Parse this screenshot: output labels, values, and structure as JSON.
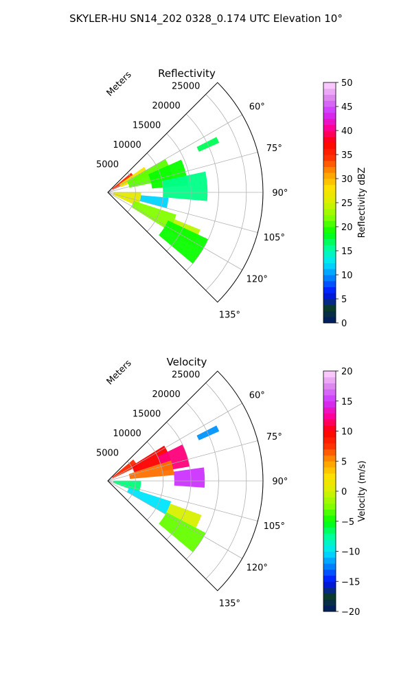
{
  "suptitle": "SKYLER-HU  SN14_202  0328_0.174 UTC Elevation 10°",
  "chart_data": [
    {
      "type": "heatmap",
      "projection": "polar-sector",
      "title": "Reflectivity",
      "radial_label": "Meters",
      "range_ticks": [
        5000,
        10000,
        15000,
        20000,
        25000
      ],
      "range_tick_labels": [
        "5000",
        "10000",
        "15000",
        "20000",
        "25000"
      ],
      "rmax": 28000,
      "azimuth_range_deg": [
        45,
        135
      ],
      "azimuth_ticks_deg": [
        60,
        75,
        90,
        105,
        120,
        135
      ],
      "azimuth_tick_labels": [
        "60°",
        "75°",
        "90°",
        "105°",
        "120°",
        "135°"
      ],
      "grid": true,
      "colorbar": {
        "label": "Reflectivity dBZ",
        "vmin": 0,
        "vmax": 50,
        "ticks": [
          0,
          5,
          10,
          15,
          20,
          25,
          30,
          35,
          40,
          45,
          50
        ],
        "tick_labels": [
          "0",
          "5",
          "10",
          "15",
          "20",
          "25",
          "30",
          "35",
          "40",
          "45",
          "50"
        ],
        "stops": [
          "#001a66",
          "#0b3b2e",
          "#0010ff",
          "#0080ff",
          "#00e5ff",
          "#00ff9a",
          "#00ff00",
          "#7fff00",
          "#d8f000",
          "#ffe000",
          "#ff9900",
          "#ff3300",
          "#ff0000",
          "#ff0099",
          "#cc33ff",
          "#dd88ee",
          "#ffd8ff"
        ]
      },
      "echo_regions": [
        {
          "az": [
            50,
            64
          ],
          "r": [
            1000,
            5500
          ],
          "value": 35
        },
        {
          "az": [
            55,
            68
          ],
          "r": [
            2500,
            8000
          ],
          "value": 27
        },
        {
          "az": [
            60,
            78
          ],
          "r": [
            4000,
            12000
          ],
          "value": 21
        },
        {
          "az": [
            66,
            85
          ],
          "r": [
            8000,
            14500
          ],
          "value": 19
        },
        {
          "az": [
            78,
            95
          ],
          "r": [
            10000,
            18000
          ],
          "value": 16
        },
        {
          "az": [
            95,
            105
          ],
          "r": [
            6000,
            11000
          ],
          "value": 12
        },
        {
          "az": [
            90,
            115
          ],
          "r": [
            1000,
            6000
          ],
          "value": 26
        },
        {
          "az": [
            108,
            122
          ],
          "r": [
            5000,
            13000
          ],
          "value": 22
        },
        {
          "az": [
            112,
            122
          ],
          "r": [
            13000,
            18000
          ],
          "value": 24
        },
        {
          "az": [
            115,
            130
          ],
          "r": [
            12000,
            20000
          ],
          "value": 19
        },
        {
          "az": [
            63,
            66
          ],
          "r": [
            18000,
            22000
          ],
          "value": 17
        }
      ]
    },
    {
      "type": "heatmap",
      "projection": "polar-sector",
      "title": "Velocity",
      "radial_label": "Meters",
      "range_ticks": [
        5000,
        10000,
        15000,
        20000,
        25000
      ],
      "range_tick_labels": [
        "5000",
        "10000",
        "15000",
        "20000",
        "25000"
      ],
      "rmax": 28000,
      "azimuth_range_deg": [
        45,
        135
      ],
      "azimuth_ticks_deg": [
        60,
        75,
        90,
        105,
        120,
        135
      ],
      "azimuth_tick_labels": [
        "60°",
        "75°",
        "90°",
        "105°",
        "120°",
        "135°"
      ],
      "grid": true,
      "colorbar": {
        "label": "Velocity (m/s)",
        "vmin": -20,
        "vmax": 20,
        "ticks": [
          -20,
          -15,
          -10,
          -5,
          0,
          5,
          10,
          15,
          20
        ],
        "tick_labels": [
          "−20",
          "−15",
          "−10",
          "−5",
          "0",
          "5",
          "10",
          "15",
          "20"
        ],
        "stops": [
          "#001a66",
          "#0b3b2e",
          "#0010ff",
          "#0080ff",
          "#00e5ff",
          "#00ff9a",
          "#00ff00",
          "#7fff00",
          "#d8f000",
          "#ffe000",
          "#ff9900",
          "#ff3300",
          "#ff0000",
          "#ff0099",
          "#cc33ff",
          "#dd88ee",
          "#ffd8ff"
        ]
      },
      "echo_regions": [
        {
          "az": [
            50,
            64
          ],
          "r": [
            1000,
            6000
          ],
          "value": 8
        },
        {
          "az": [
            58,
            72
          ],
          "r": [
            5000,
            12000
          ],
          "value": 10
        },
        {
          "az": [
            64,
            80
          ],
          "r": [
            10000,
            15000
          ],
          "value": 12
        },
        {
          "az": [
            82,
            94
          ],
          "r": [
            12000,
            17500
          ],
          "value": 15
        },
        {
          "az": [
            72,
            85
          ],
          "r": [
            4000,
            12000
          ],
          "value": 6
        },
        {
          "az": [
            90,
            110
          ],
          "r": [
            1000,
            6000
          ],
          "value": -7
        },
        {
          "az": [
            108,
            120
          ],
          "r": [
            4000,
            12000
          ],
          "value": -10
        },
        {
          "az": [
            110,
            118
          ],
          "r": [
            12000,
            18000
          ],
          "value": 0
        },
        {
          "az": [
            118,
            130
          ],
          "r": [
            12000,
            20000
          ],
          "value": -3
        },
        {
          "az": [
            63,
            66
          ],
          "r": [
            18000,
            22000
          ],
          "value": -12
        }
      ]
    }
  ]
}
